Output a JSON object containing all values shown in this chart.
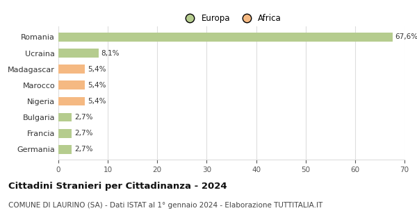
{
  "categories": [
    "Romania",
    "Ucraina",
    "Madagascar",
    "Marocco",
    "Nigeria",
    "Bulgaria",
    "Francia",
    "Germania"
  ],
  "values": [
    67.6,
    8.1,
    5.4,
    5.4,
    5.4,
    2.7,
    2.7,
    2.7
  ],
  "labels": [
    "67,6%",
    "8,1%",
    "5,4%",
    "5,4%",
    "5,4%",
    "2,7%",
    "2,7%",
    "2,7%"
  ],
  "colors": [
    "#b5cc8e",
    "#b5cc8e",
    "#f5b982",
    "#f5b982",
    "#f5b982",
    "#b5cc8e",
    "#b5cc8e",
    "#b5cc8e"
  ],
  "legend": [
    {
      "label": "Europa",
      "color": "#b5cc8e"
    },
    {
      "label": "Africa",
      "color": "#f5b982"
    }
  ],
  "xlim": [
    0,
    70
  ],
  "xticks": [
    0,
    10,
    20,
    30,
    40,
    50,
    60,
    70
  ],
  "title": "Cittadini Stranieri per Cittadinanza - 2024",
  "subtitle": "COMUNE DI LAURINO (SA) - Dati ISTAT al 1° gennaio 2024 - Elaborazione TUTTITALIA.IT",
  "title_fontsize": 9.5,
  "subtitle_fontsize": 7.5,
  "background_color": "#ffffff",
  "grid_color": "#dddddd"
}
